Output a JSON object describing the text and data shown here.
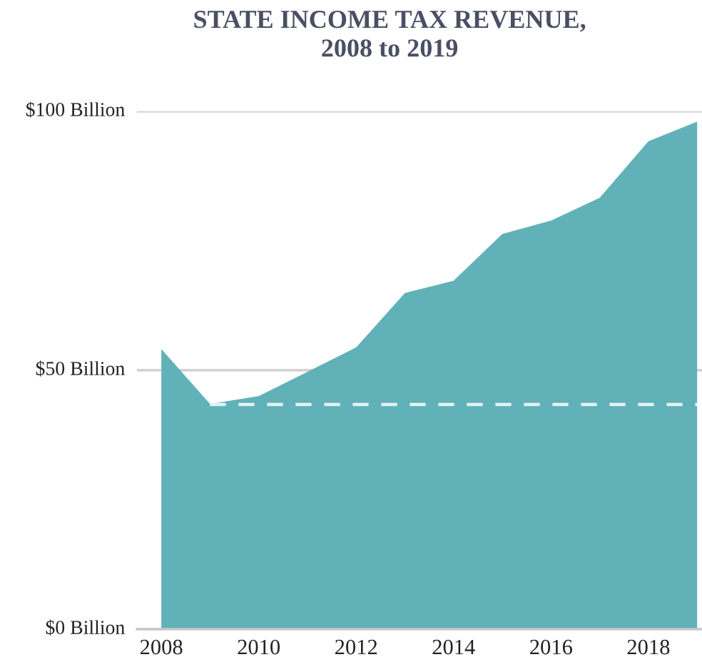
{
  "chart_data": {
    "type": "area",
    "title": "STATE INCOME TAX REVENUE,\n2008 to 2019",
    "x": [
      2008,
      2009,
      2010,
      2011,
      2012,
      2013,
      2014,
      2015,
      2016,
      2017,
      2018,
      2019
    ],
    "series": [
      {
        "color": "#60b2b8",
        "values": [
          54.1,
          43.5,
          45.0,
          49.7,
          54.4,
          64.9,
          67.3,
          76.3,
          78.9,
          83.3,
          94.2,
          98.0
        ]
      },
      {
        "type": "line",
        "color": "#e6f2f3",
        "line_style": "dashed",
        "x": [
          2009,
          2019
        ],
        "values": [
          43.4,
          43.4
        ]
      }
    ],
    "xlim": [
      2007.5,
      2019.1
    ],
    "xticks": [
      2008,
      2010,
      2012,
      2014,
      2016,
      2018
    ],
    "ylim": [
      0,
      100
    ],
    "yticks": [
      {
        "value": 0,
        "label": "$0 Billion"
      },
      {
        "value": 50,
        "label": "$50 Billion"
      },
      {
        "value": 100,
        "label": "$100 Billion"
      }
    ],
    "grid": "y"
  }
}
